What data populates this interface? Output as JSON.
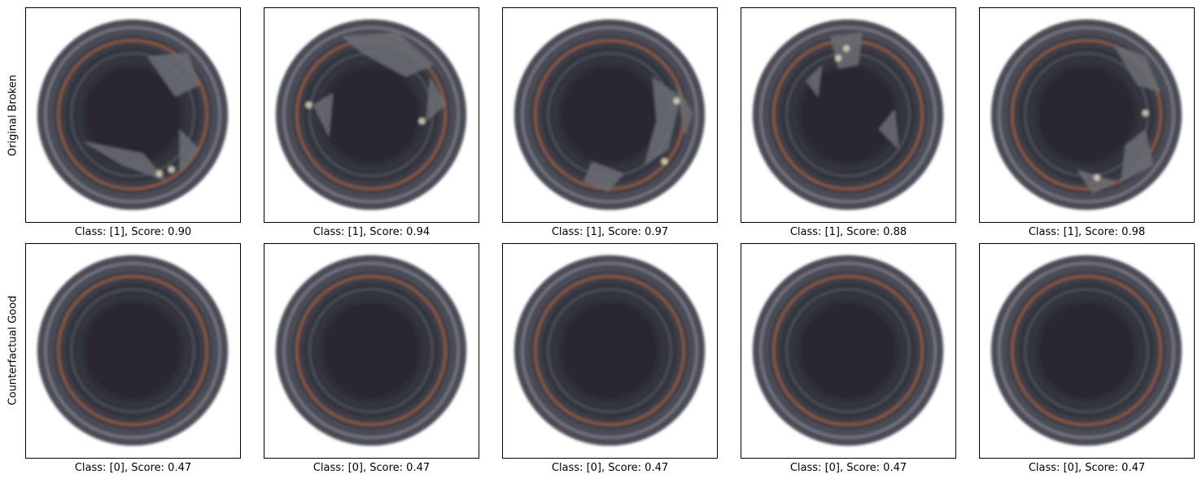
{
  "rows": [
    {
      "label": "Original Broken",
      "captions": [
        "Class: [1], Score: 0.90",
        "Class: [1], Score: 0.94",
        "Class: [1], Score: 0.97",
        "Class: [1], Score: 0.88",
        "Class: [1], Score: 0.98"
      ]
    },
    {
      "label": "Counterfactual Good",
      "captions": [
        "Class: [0], Score: 0.47",
        "Class: [0], Score: 0.47",
        "Class: [0], Score: 0.47",
        "Class: [0], Score: 0.47",
        "Class: [0], Score: 0.47"
      ]
    }
  ],
  "colors": {
    "rim": "#4a4c56",
    "ring_light": "#8d8f99",
    "copper": "#a0623c",
    "interior": "#2a2730",
    "shard": "#6c6e76",
    "highlight": "#e6dcc0"
  }
}
